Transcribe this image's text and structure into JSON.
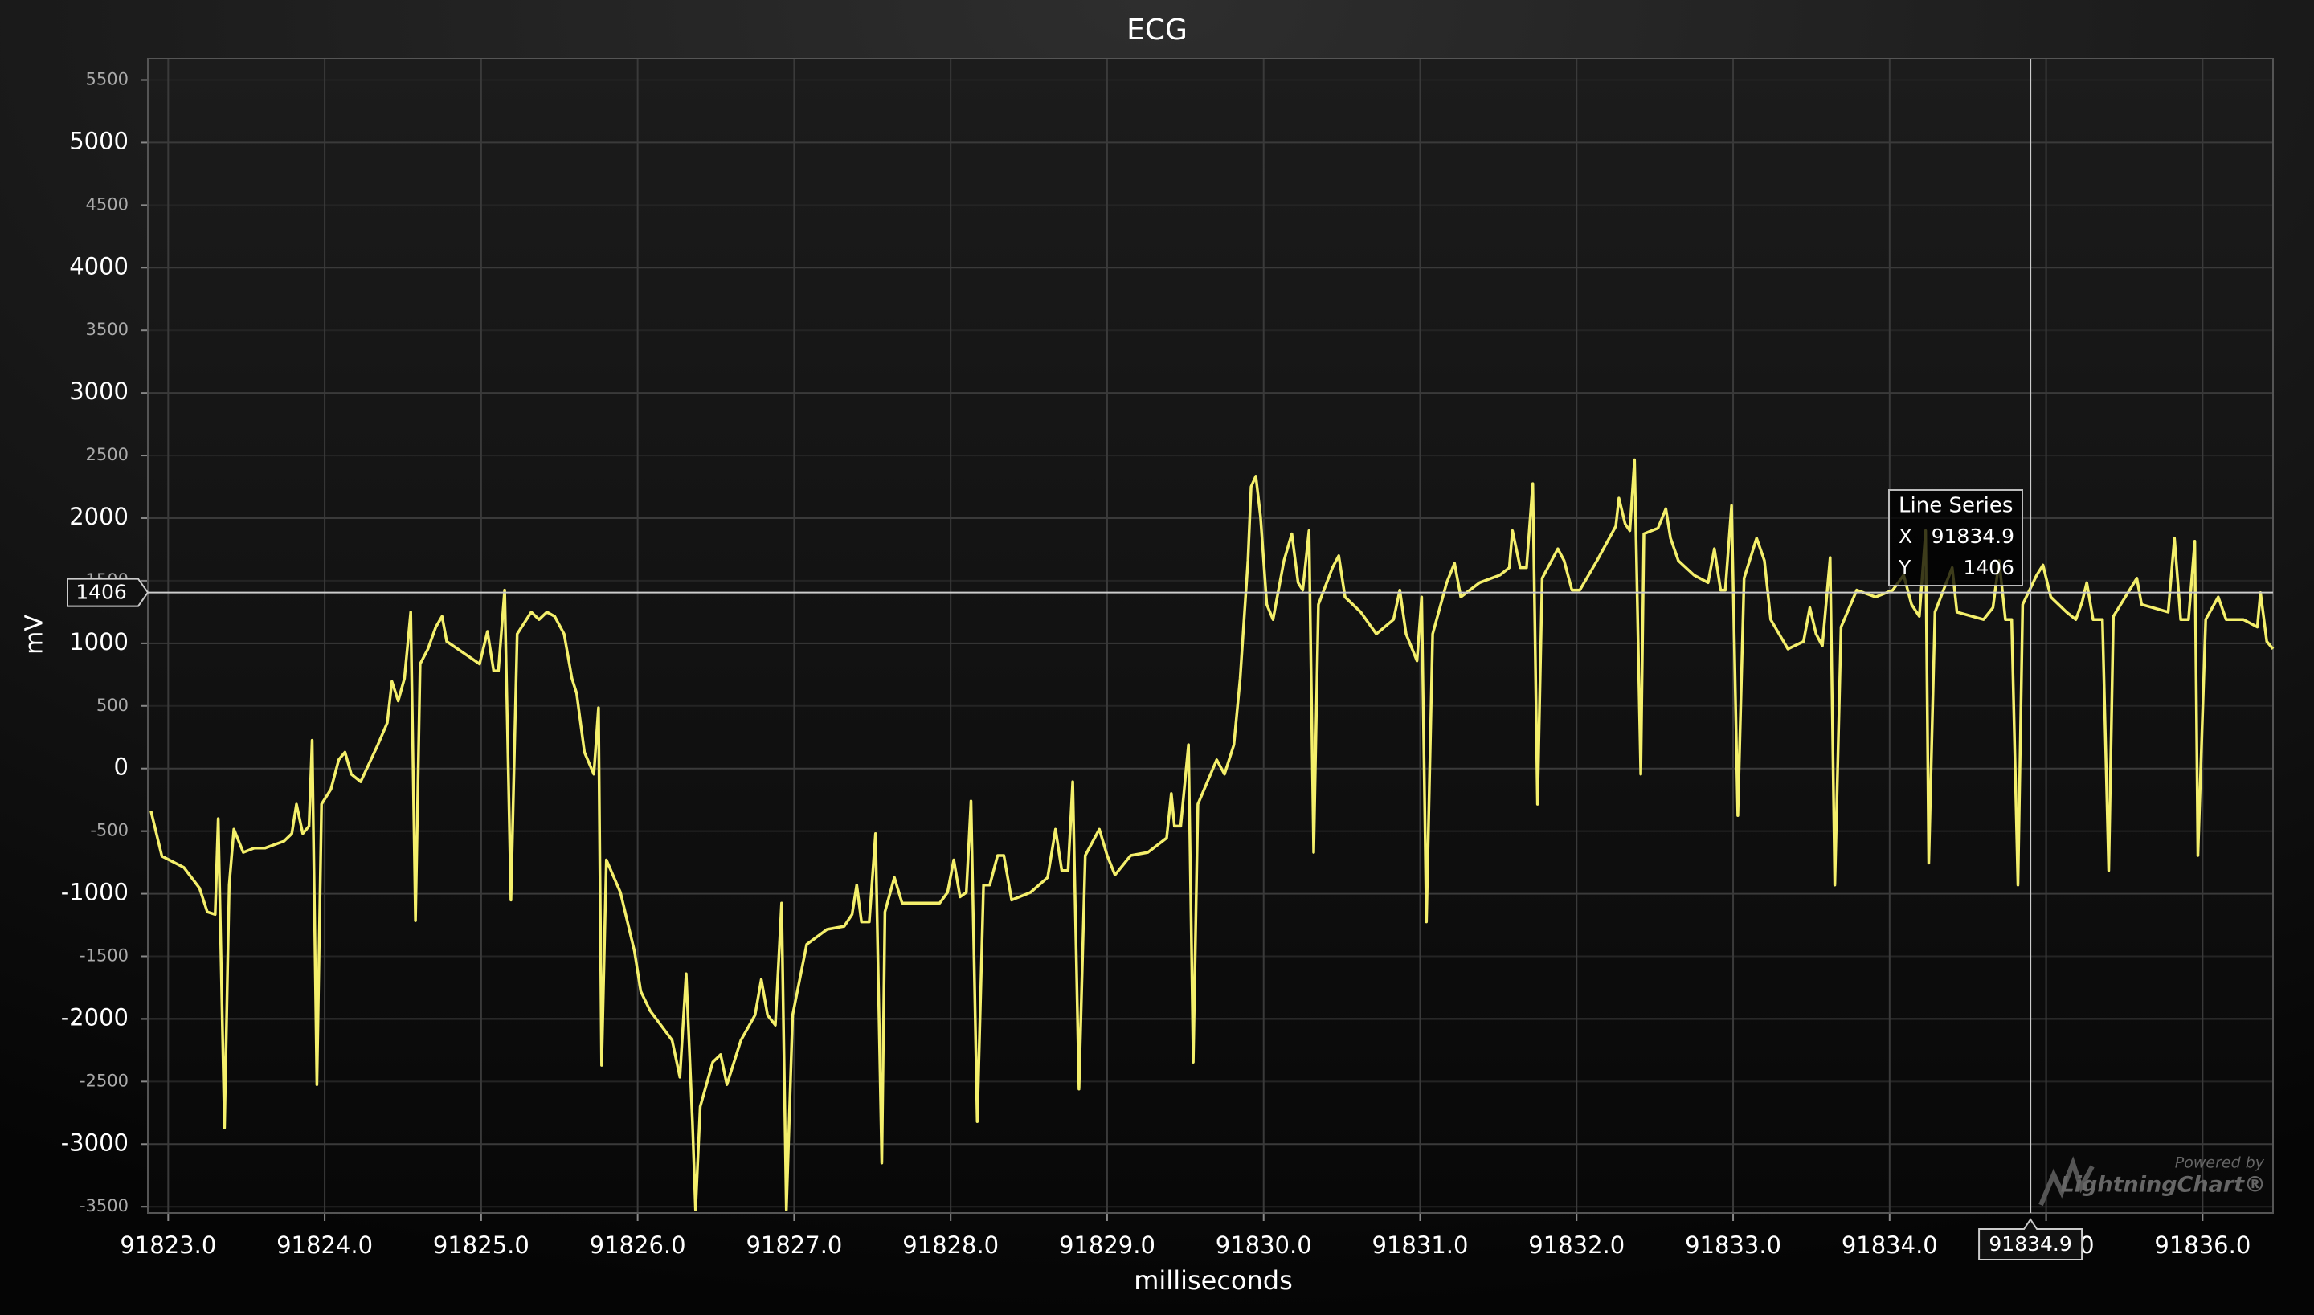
{
  "chart_data": {
    "type": "line",
    "title": "ECG",
    "x_label": "milliseconds",
    "y_label": "mV",
    "xlim": [
      91822.87,
      91836.45
    ],
    "ylim": [
      -3550,
      5670
    ],
    "xticks": [
      {
        "value": 91823,
        "label": "91823.0"
      },
      {
        "value": 91824,
        "label": "91824.0"
      },
      {
        "value": 91825,
        "label": "91825.0"
      },
      {
        "value": 91826,
        "label": "91826.0"
      },
      {
        "value": 91827,
        "label": "91827.0"
      },
      {
        "value": 91828,
        "label": "91828.0"
      },
      {
        "value": 91829,
        "label": "91829.0"
      },
      {
        "value": 91830,
        "label": "91830.0"
      },
      {
        "value": 91831,
        "label": "91831.0"
      },
      {
        "value": 91832,
        "label": "91832.0"
      },
      {
        "value": 91833,
        "label": "91833.0"
      },
      {
        "value": 91834,
        "label": "91834.0"
      },
      {
        "value": 91835,
        "label": "91835.0"
      },
      {
        "value": 91836,
        "label": "91836.0"
      }
    ],
    "yticks": [
      -3500,
      -3000,
      -2500,
      -2000,
      -1500,
      -1000,
      -500,
      0,
      500,
      1000,
      1500,
      2000,
      2500,
      3000,
      3500,
      4000,
      4500,
      5000,
      5500
    ],
    "grid": true,
    "series": [
      {
        "name": "Line Series",
        "color": "#f4ef6b",
        "x": [
          91822.89,
          91822.96,
          91823.1,
          91823.2,
          91823.25,
          91823.3,
          91823.32,
          91823.36,
          91823.39,
          91823.42,
          91823.48,
          91823.55,
          91823.62,
          91823.74,
          91823.79,
          91823.82,
          91823.86,
          91823.9,
          91823.92,
          91823.95,
          91823.98,
          91824.04,
          91824.09,
          91824.13,
          91824.17,
          91824.23,
          91824.34,
          91824.4,
          91824.43,
          91824.47,
          91824.51,
          91824.55,
          91824.58,
          91824.61,
          91824.66,
          91824.71,
          91824.75,
          91824.78,
          91824.92,
          91824.99,
          91825.04,
          91825.08,
          91825.11,
          91825.15,
          91825.19,
          91825.23,
          91825.32,
          91825.37,
          91825.42,
          91825.47,
          91825.53,
          91825.58,
          91825.61,
          91825.66,
          91825.72,
          91825.75,
          91825.77,
          91825.8,
          91825.89,
          91825.98,
          91826.02,
          91826.08,
          91826.22,
          91826.27,
          91826.31,
          91826.35,
          91826.37,
          91826.4,
          91826.48,
          91826.53,
          91826.57,
          91826.66,
          91826.75,
          91826.79,
          91826.83,
          91826.88,
          91826.92,
          91826.95,
          91826.99,
          91827.08,
          91827.21,
          91827.32,
          91827.37,
          91827.4,
          91827.43,
          91827.48,
          91827.52,
          91827.56,
          91827.58,
          91827.64,
          91827.69,
          91827.79,
          91827.93,
          91827.98,
          91828.02,
          91828.06,
          91828.1,
          91828.13,
          91828.17,
          91828.21,
          91828.25,
          91828.3,
          91828.34,
          91828.39,
          91828.51,
          91828.62,
          91828.67,
          91828.71,
          91828.75,
          91828.78,
          91828.82,
          91828.86,
          91828.95,
          91829.0,
          91829.05,
          91829.15,
          91829.26,
          91829.38,
          91829.41,
          91829.43,
          91829.47,
          91829.52,
          91829.55,
          91829.58,
          91829.7,
          91829.75,
          91829.81,
          91829.85,
          91829.9,
          91829.92,
          91829.95,
          91829.98,
          91830.02,
          91830.06,
          91830.13,
          91830.18,
          91830.22,
          91830.25,
          91830.29,
          91830.32,
          91830.35,
          91830.44,
          91830.48,
          91830.52,
          91830.62,
          91830.72,
          91830.83,
          91830.87,
          91830.91,
          91830.98,
          91831.01,
          91831.04,
          91831.08,
          91831.17,
          91831.22,
          91831.26,
          91831.38,
          91831.51,
          91831.57,
          91831.59,
          91831.64,
          91831.68,
          91831.72,
          91831.75,
          91831.78,
          91831.88,
          91831.92,
          91831.97,
          91832.02,
          91832.13,
          91832.25,
          91832.27,
          91832.31,
          91832.34,
          91832.37,
          91832.41,
          91832.43,
          91832.52,
          91832.57,
          91832.6,
          91832.65,
          91832.75,
          91832.84,
          91832.88,
          91832.92,
          91832.95,
          91832.99,
          91833.03,
          91833.07,
          91833.15,
          91833.2,
          91833.24,
          91833.35,
          91833.45,
          91833.49,
          91833.53,
          91833.57,
          91833.62,
          91833.65,
          91833.69,
          91833.79,
          91833.91,
          91834.02,
          91834.09,
          91834.14,
          91834.19,
          91834.23,
          91834.25,
          91834.29,
          91834.4,
          91834.43,
          91834.6,
          91834.66,
          91834.7,
          91834.74,
          91834.78,
          91834.82,
          91834.85,
          91834.94,
          91834.98,
          91835.03,
          91835.13,
          91835.19,
          91835.23,
          91835.26,
          91835.3,
          91835.36,
          91835.4,
          91835.43,
          91835.58,
          91835.61,
          91835.78,
          91835.82,
          91835.86,
          91835.91,
          91835.95,
          91835.97,
          91836.02,
          91836.1,
          91836.15,
          91836.26,
          91836.35,
          91836.37,
          91836.41,
          91836.45
        ],
        "values": [
          -340,
          -700,
          -790,
          -955,
          -1145,
          -1165,
          -400,
          -2870,
          -930,
          -485,
          -670,
          -635,
          -635,
          -580,
          -520,
          -285,
          -520,
          -460,
          225,
          -2525,
          -285,
          -165,
          70,
          130,
          -45,
          -105,
          190,
          365,
          695,
          540,
          720,
          1250,
          -1215,
          835,
          955,
          1130,
          1215,
          1015,
          895,
          835,
          1095,
          780,
          780,
          1425,
          -1050,
          1075,
          1250,
          1190,
          1250,
          1215,
          1075,
          720,
          600,
          130,
          -45,
          485,
          -2370,
          -730,
          -990,
          -1460,
          -1780,
          -1935,
          -2170,
          -2465,
          -1640,
          -2820,
          -3525,
          -2700,
          -2345,
          -2285,
          -2525,
          -2170,
          -1970,
          -1685,
          -1970,
          -2050,
          -1075,
          -3525,
          -1970,
          -1405,
          -1285,
          -1260,
          -1165,
          -930,
          -1225,
          -1225,
          -520,
          -3150,
          -1145,
          -870,
          -1075,
          -1075,
          -1075,
          -990,
          -730,
          -1025,
          -990,
          -260,
          -2820,
          -930,
          -930,
          -695,
          -695,
          -1050,
          -990,
          -870,
          -485,
          -815,
          -815,
          -105,
          -2560,
          -695,
          -485,
          -695,
          -850,
          -695,
          -670,
          -555,
          -200,
          -460,
          -460,
          190,
          -2345,
          -285,
          70,
          -45,
          190,
          720,
          1660,
          2250,
          2335,
          2015,
          1310,
          1190,
          1660,
          1875,
          1485,
          1425,
          1900,
          -670,
          1310,
          1605,
          1700,
          1370,
          1250,
          1075,
          1190,
          1425,
          1075,
          860,
          1370,
          -1225,
          1075,
          1485,
          1640,
          1370,
          1485,
          1545,
          1605,
          1900,
          1605,
          1605,
          2275,
          -285,
          1520,
          1755,
          1660,
          1425,
          1425,
          1660,
          1935,
          2160,
          1955,
          1900,
          2465,
          -45,
          1875,
          1920,
          2075,
          1840,
          1660,
          1545,
          1485,
          1755,
          1425,
          1425,
          2100,
          -375,
          1520,
          1840,
          1660,
          1190,
          955,
          1015,
          1285,
          1075,
          980,
          1685,
          -930,
          1130,
          1425,
          1370,
          1425,
          1545,
          1310,
          1215,
          1900,
          -755,
          1250,
          1605,
          1250,
          1190,
          1285,
          1660,
          1190,
          1190,
          -930,
          1310,
          1545,
          1625,
          1370,
          1250,
          1190,
          1330,
          1485,
          1190,
          1190,
          -815,
          1215,
          1520,
          1310,
          1250,
          1840,
          1190,
          1190,
          1815,
          -695,
          1190,
          1370,
          1190,
          1190,
          1130,
          1405,
          1015,
          955
        ]
      }
    ],
    "cursor": {
      "x": 91834.9,
      "y": 1406
    },
    "tooltip": {
      "x_label": "X",
      "y_label": "Y"
    }
  },
  "watermark": {
    "line1": "Powered by",
    "line2": "LightningChart®"
  }
}
